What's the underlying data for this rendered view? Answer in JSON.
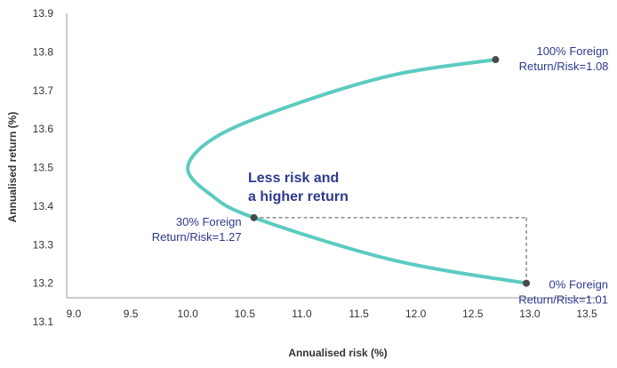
{
  "chart_data": {
    "type": "line",
    "xlabel": "Annualised risk (%)",
    "ylabel": "Annualised return (%)",
    "xlim": [
      9.0,
      13.5
    ],
    "ylim": [
      13.1,
      13.9
    ],
    "x_ticks": [
      "9.0",
      "9.5",
      "10.0",
      "10.5",
      "11.0",
      "11.5",
      "12.0",
      "12.5",
      "13.0",
      "13.5"
    ],
    "y_ticks": [
      "13.1",
      "13.2",
      "13.3",
      "13.4",
      "13.5",
      "13.6",
      "13.7",
      "13.8",
      "13.9"
    ],
    "grid": false,
    "series": [
      {
        "color": "#5ccbc0",
        "points": [
          {
            "x": 12.97,
            "y": 13.2
          },
          {
            "x": 11.8,
            "y": 13.26
          },
          {
            "x": 10.58,
            "y": 13.37
          },
          {
            "x": 10.2,
            "y": 13.43
          },
          {
            "x": 10.0,
            "y": 13.5
          },
          {
            "x": 10.25,
            "y": 13.58
          },
          {
            "x": 10.9,
            "y": 13.66
          },
          {
            "x": 11.8,
            "y": 13.74
          },
          {
            "x": 12.7,
            "y": 13.78
          }
        ]
      }
    ],
    "markers": [
      {
        "name": "0%",
        "x": 12.97,
        "y": 13.2,
        "line1": "0% Foreign",
        "line2": "Return/Risk=1.01"
      },
      {
        "name": "30%",
        "x": 10.58,
        "y": 13.37,
        "line1": "30% Foreign",
        "line2": "Return/Risk=1.27"
      },
      {
        "name": "100%",
        "x": 12.7,
        "y": 13.78,
        "line1": "100% Foreign",
        "line2": "Return/Risk=1.08"
      }
    ],
    "annotation": {
      "line1": "Less risk and",
      "line2": "a higher return"
    },
    "colors": {
      "curve": "#5ccbc0",
      "marker": "#4a4a4a",
      "label": "#2e3a8c",
      "axis": "#999999",
      "dashed": "#555555"
    }
  }
}
